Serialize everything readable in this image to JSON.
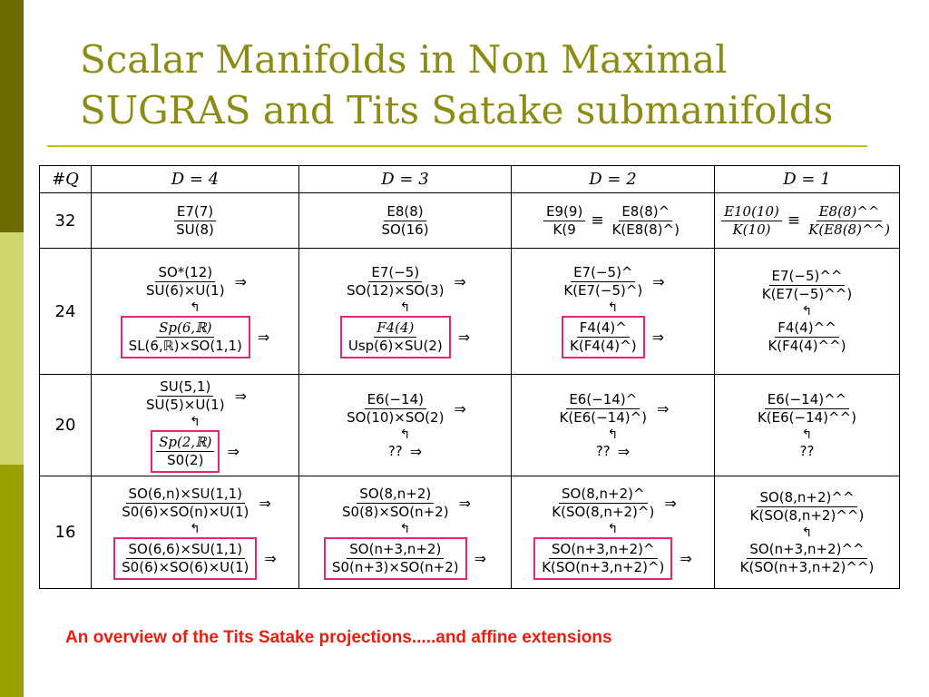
{
  "slide": {
    "title_line1": "Scalar Manifolds in Non Maximal",
    "title_line2": "SUGRAS and Tits Satake submanifolds",
    "caption": "An overview of the Tits Satake projections.....and affine extensions"
  },
  "colors": {
    "title": "#8c8c14",
    "highlight": "#e5247a",
    "caption": "#e81e10"
  },
  "table": {
    "header": {
      "q": "#Q",
      "d4": "D = 4",
      "d3": "D = 3",
      "d2": "D = 2",
      "d1": "D = 1"
    },
    "symbols": {
      "equiv": "≡",
      "implies": "⇒",
      "up_left": "↰",
      "unknown": "??"
    },
    "rows": {
      "r32": {
        "label": "32",
        "d4": {
          "num": "E7(7)",
          "den": "SU(8)"
        },
        "d3": {
          "num": "E8(8)",
          "den": "SO(16)"
        },
        "d2": {
          "a_num": "E9(9)",
          "a_den": "K(9",
          "b_num": "E8(8)^",
          "b_den": "K(E8(8)^)"
        },
        "d1": {
          "a_num": "E10(10)",
          "a_den": "K(10)",
          "b_num": "E8(8)^^",
          "b_den": "K(E8(8)^^)"
        }
      },
      "r24": {
        "label": "24",
        "d4": {
          "top_num": "SO*(12)",
          "top_den": "SU(6)×U(1)",
          "bot_num": "Sp(6,ℝ)",
          "bot_den": "SL(6,ℝ)×SO(1,1)"
        },
        "d3": {
          "top_num": "E7(−5)",
          "top_den": "SO(12)×SO(3)",
          "bot_num": "F4(4)",
          "bot_den": "Usp(6)×SU(2)"
        },
        "d2": {
          "top_num": "E7(−5)^",
          "top_den": "K(E7(−5)^)",
          "bot_num": "F4(4)^",
          "bot_den": "K(F4(4)^)"
        },
        "d1": {
          "top_num": "E7(−5)^^",
          "top_den": "K(E7(−5)^^)",
          "bot_num": "F4(4)^^",
          "bot_den": "K(F4(4)^^)"
        }
      },
      "r20": {
        "label": "20",
        "d4": {
          "top_num": "SU(5,1)",
          "top_den": "SU(5)×U(1)",
          "bot_num": "Sp(2,ℝ)",
          "bot_den": "S0(2)"
        },
        "d3": {
          "top_num": "E6(−14)",
          "top_den": "SO(10)×SO(2)"
        },
        "d2": {
          "top_num": "E6(−14)^",
          "top_den": "K(E6(−14)^)"
        },
        "d1": {
          "top_num": "E6(−14)^^",
          "top_den": "K(E6(−14)^^)"
        }
      },
      "r16": {
        "label": "16",
        "d4": {
          "top_num": "SO(6,n)×SU(1,1)",
          "top_den": "S0(6)×SO(n)×U(1)",
          "bot_num": "SO(6,6)×SU(1,1)",
          "bot_den": "S0(6)×SO(6)×U(1)"
        },
        "d3": {
          "top_num": "SO(8,n+2)",
          "top_den": "S0(8)×SO(n+2)",
          "bot_num": "SO(n+3,n+2)",
          "bot_den": "S0(n+3)×SO(n+2)"
        },
        "d2": {
          "top_num": "SO(8,n+2)^",
          "top_den": "K(SO(8,n+2)^)",
          "bot_num": "SO(n+3,n+2)^",
          "bot_den": "K(SO(n+3,n+2)^)"
        },
        "d1": {
          "top_num": "SO(8,n+2)^^",
          "top_den": "K(SO(8,n+2)^^)",
          "bot_num": "SO(n+3,n+2)^^",
          "bot_den": "K(SO(n+3,n+2)^^)"
        }
      }
    }
  }
}
